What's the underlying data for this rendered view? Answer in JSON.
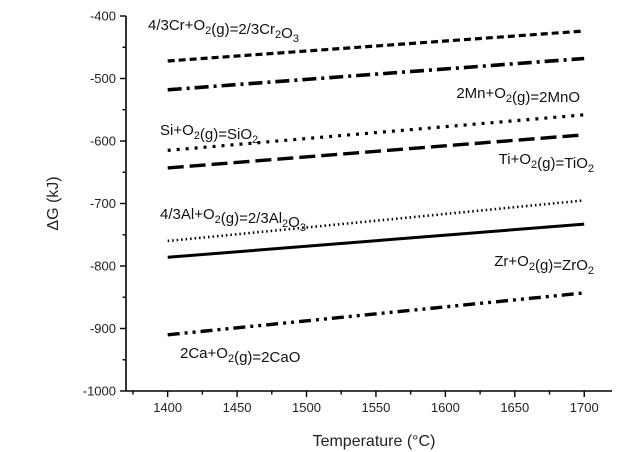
{
  "chart_data": {
    "type": "line",
    "title": "",
    "xlabel": "Temperature (°C)",
    "ylabel": "ΔG (kJ)",
    "xlim": [
      1370,
      1720
    ],
    "ylim": [
      -1000,
      -400
    ],
    "xticks": [
      1400,
      1450,
      1500,
      1550,
      1600,
      1650,
      1700
    ],
    "yticks": [
      -1000,
      -900,
      -800,
      -700,
      -600,
      -500,
      -400
    ],
    "grid": false,
    "legend": "none",
    "series": [
      {
        "id": "cr",
        "label": [
          [
            "4/3Cr+O",
            false
          ],
          [
            "2",
            true
          ],
          [
            "(g)=2/3Cr",
            false
          ],
          [
            "2",
            true
          ],
          [
            "O",
            false
          ],
          [
            "3",
            true
          ]
        ],
        "x": [
          1400,
          1700
        ],
        "y": [
          -472,
          -424
        ],
        "dash": "7,4",
        "width": 3.2
      },
      {
        "id": "mn",
        "label": [
          [
            "2Mn+O",
            false
          ],
          [
            "2",
            true
          ],
          [
            "(g)=2MnO",
            false
          ]
        ],
        "x": [
          1400,
          1700
        ],
        "y": [
          -518,
          -468
        ],
        "dash": "14,5,3,5",
        "width": 3.6
      },
      {
        "id": "si",
        "label": [
          [
            "Si+O",
            false
          ],
          [
            "2",
            true
          ],
          [
            "(g)=SiO",
            false
          ],
          [
            "2",
            true
          ]
        ],
        "x": [
          1400,
          1700
        ],
        "y": [
          -615,
          -558
        ],
        "dash": "3,6",
        "width": 3.2
      },
      {
        "id": "ti",
        "label": [
          [
            "Ti+O",
            false
          ],
          [
            "2",
            true
          ],
          [
            "(g)=TiO",
            false
          ],
          [
            "2",
            true
          ]
        ],
        "x": [
          1400,
          1700
        ],
        "y": [
          -643,
          -590
        ],
        "dash": "16,6",
        "width": 3.4
      },
      {
        "id": "al",
        "label": [
          [
            "4/3Al+O",
            false
          ],
          [
            "2",
            true
          ],
          [
            "(g)=2/3Al",
            false
          ],
          [
            "2",
            true
          ],
          [
            "O",
            false
          ],
          [
            "3",
            true
          ]
        ],
        "x": [
          1400,
          1700
        ],
        "y": [
          -760,
          -695
        ],
        "dash": "1.5,3",
        "width": 2.6
      },
      {
        "id": "zr",
        "label": [
          [
            "Zr+O",
            false
          ],
          [
            "2",
            true
          ],
          [
            "(g)=ZrO",
            false
          ],
          [
            "2",
            true
          ]
        ],
        "x": [
          1400,
          1700
        ],
        "y": [
          -786,
          -733
        ],
        "dash": "",
        "width": 3.0
      },
      {
        "id": "ca",
        "label": [
          [
            "2Ca+O",
            false
          ],
          [
            "2",
            true
          ],
          [
            "(g)=2CaO",
            false
          ]
        ],
        "x": [
          1400,
          1700
        ],
        "y": [
          -910,
          -843
        ],
        "dash": "12,5,3,5,3,5",
        "width": 3.4
      }
    ]
  }
}
